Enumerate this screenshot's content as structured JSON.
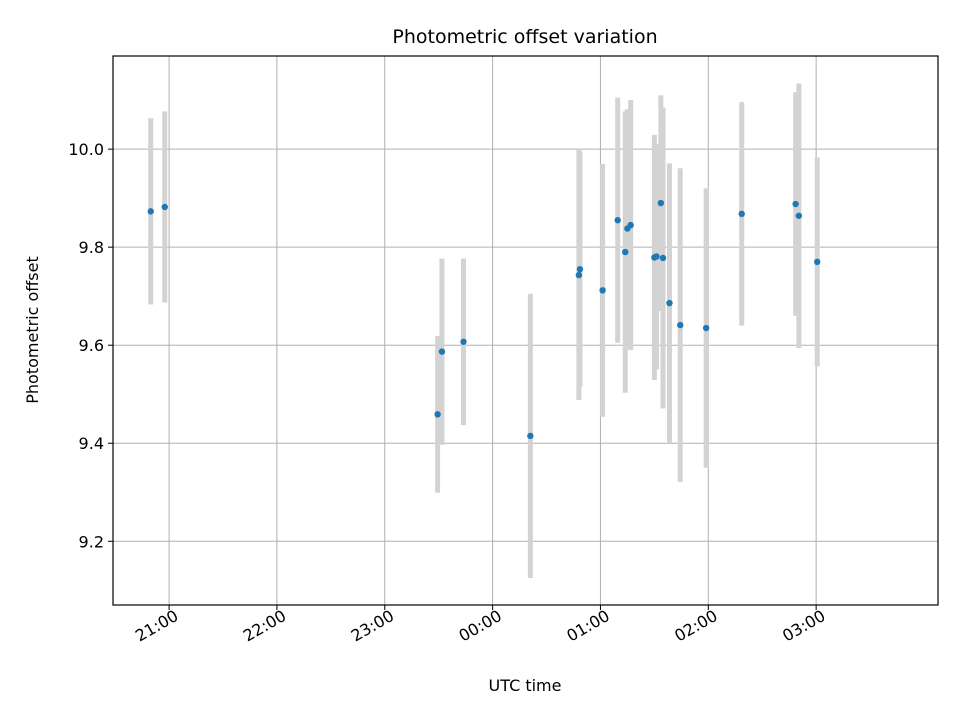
{
  "chart_data": {
    "type": "scatter",
    "title": "Photometric offset variation",
    "xlabel": "UTC time",
    "ylabel": "Photometric offset",
    "x_unit": "hours after 20:00 UTC",
    "xlim": [
      0.2,
      7.85
    ],
    "ylim": [
      9.07,
      10.19
    ],
    "x_ticks": [
      {
        "value": 0.72,
        "label": "21:00"
      },
      {
        "value": 1.72,
        "label": "22:00"
      },
      {
        "value": 2.72,
        "label": "23:00"
      },
      {
        "value": 3.72,
        "label": "00:00"
      },
      {
        "value": 4.72,
        "label": "01:00"
      },
      {
        "value": 5.72,
        "label": "02:00"
      },
      {
        "value": 6.72,
        "label": "03:00"
      }
    ],
    "y_ticks": [
      {
        "value": 9.2,
        "label": "9.2"
      },
      {
        "value": 9.4,
        "label": "9.4"
      },
      {
        "value": 9.6,
        "label": "9.6"
      },
      {
        "value": 9.8,
        "label": "9.8"
      },
      {
        "value": 10.0,
        "label": "10.0"
      }
    ],
    "grid": true,
    "colors": {
      "point": "#1f77b4",
      "errorbar": "#d3d3d3",
      "grid": "#b0b0b0"
    },
    "points": [
      {
        "x": 0.55,
        "y": 9.873,
        "err": 0.19
      },
      {
        "x": 0.68,
        "y": 9.882,
        "err": 0.195
      },
      {
        "x": 3.21,
        "y": 9.459,
        "err": 0.16
      },
      {
        "x": 3.25,
        "y": 9.587,
        "err": 0.19
      },
      {
        "x": 3.45,
        "y": 9.607,
        "err": 0.17
      },
      {
        "x": 4.07,
        "y": 9.415,
        "err": 0.29
      },
      {
        "x": 4.52,
        "y": 9.743,
        "err": 0.255
      },
      {
        "x": 4.53,
        "y": 9.755,
        "err": 0.24
      },
      {
        "x": 4.74,
        "y": 9.712,
        "err": 0.258
      },
      {
        "x": 4.88,
        "y": 9.855,
        "err": 0.25
      },
      {
        "x": 4.95,
        "y": 9.79,
        "err": 0.287
      },
      {
        "x": 4.97,
        "y": 9.838,
        "err": 0.243
      },
      {
        "x": 5.0,
        "y": 9.845,
        "err": 0.255
      },
      {
        "x": 5.22,
        "y": 9.779,
        "err": 0.25
      },
      {
        "x": 5.24,
        "y": 9.781,
        "err": 0.23
      },
      {
        "x": 5.28,
        "y": 9.89,
        "err": 0.22
      },
      {
        "x": 5.3,
        "y": 9.778,
        "err": 0.307
      },
      {
        "x": 5.36,
        "y": 9.686,
        "err": 0.285
      },
      {
        "x": 5.46,
        "y": 9.641,
        "err": 0.32
      },
      {
        "x": 5.7,
        "y": 9.635,
        "err": 0.285
      },
      {
        "x": 6.03,
        "y": 9.868,
        "err": 0.228
      },
      {
        "x": 6.53,
        "y": 9.888,
        "err": 0.228
      },
      {
        "x": 6.56,
        "y": 9.864,
        "err": 0.27
      },
      {
        "x": 6.73,
        "y": 9.77,
        "err": 0.213
      }
    ]
  }
}
